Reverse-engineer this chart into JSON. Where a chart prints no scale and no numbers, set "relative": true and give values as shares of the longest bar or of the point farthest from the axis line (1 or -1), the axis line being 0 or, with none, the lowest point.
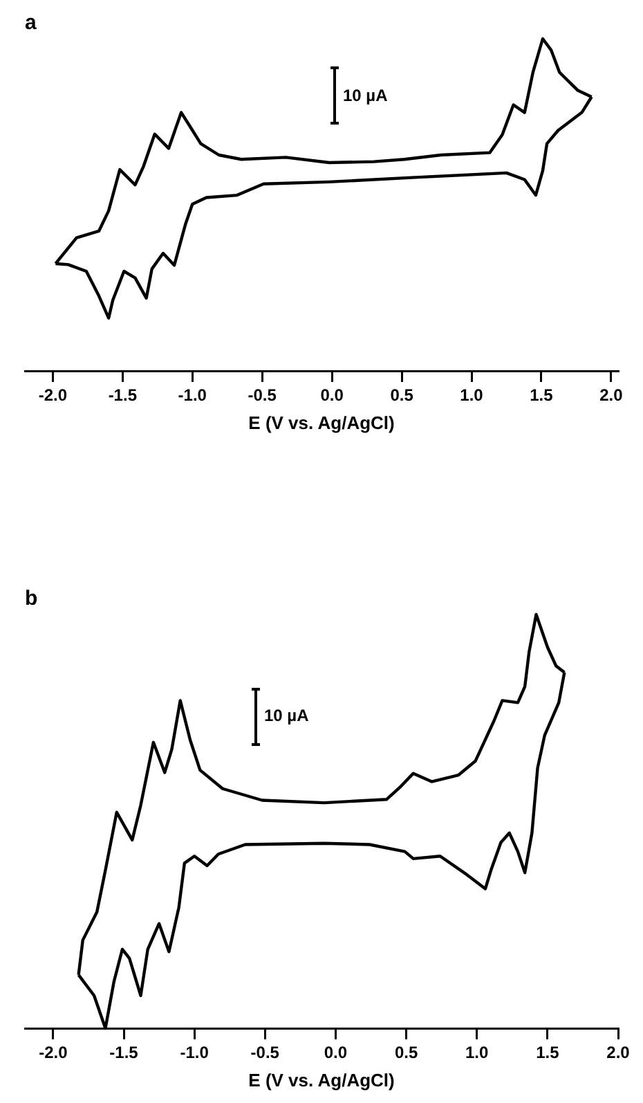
{
  "chart_data": [
    {
      "type": "line",
      "title": "a",
      "xlabel": "E (V vs. Ag/AgCl)",
      "relative": true,
      "xlim": [
        -2.2,
        2.05
      ],
      "xticks": [
        {
          "value": -2,
          "label": "-2.0"
        },
        {
          "value": -1.5,
          "label": "-1.5"
        },
        {
          "value": -1,
          "label": "-1.0"
        },
        {
          "value": -0.5,
          "label": "-0.5"
        },
        {
          "value": 0,
          "label": "0.0"
        },
        {
          "value": 0.5,
          "label": "0.5"
        },
        {
          "value": 1,
          "label": "1.0"
        },
        {
          "value": 1.5,
          "label": "1.5"
        },
        {
          "value": 2,
          "label": "2.0"
        }
      ],
      "marker": "none",
      "line_style": "solid",
      "legend": false,
      "grid": false,
      "annotations": [
        "10 µA"
      ],
      "series": [
        {
          "color": "#000000",
          "x": [
            -1.98,
            -1.83,
            -1.67,
            -1.6,
            -1.52,
            -1.41,
            -1.35,
            -1.27,
            -1.17,
            -1.08,
            -1.02,
            -0.94,
            -0.81,
            -0.65,
            -0.33,
            -0.02,
            0.3,
            0.52,
            0.78,
            1.13,
            1.22,
            1.3,
            1.38,
            1.44,
            1.51,
            1.57,
            1.63,
            1.76,
            1.86
          ],
          "values": [
            0.323,
            0.401,
            0.421,
            0.482,
            0.606,
            0.56,
            0.616,
            0.713,
            0.67,
            0.778,
            0.738,
            0.684,
            0.65,
            0.637,
            0.643,
            0.627,
            0.63,
            0.637,
            0.65,
            0.657,
            0.711,
            0.801,
            0.778,
            0.899,
            1,
            0.966,
            0.899,
            0.845,
            0.825
          ]
        },
        {
          "color": "#000000",
          "x": [
            1.86,
            1.79,
            1.62,
            1.54,
            1.51,
            1.46,
            1.38,
            1.25,
            0.62,
            -0.02,
            -0.49,
            -0.68,
            -0.9,
            -1.0,
            -1.05,
            -1.13,
            -1.21,
            -1.29,
            -1.33,
            -1.41,
            -1.49,
            -1.57,
            -1.6,
            -1.67,
            -1.76,
            -1.89,
            -1.98
          ],
          "values": [
            0.825,
            0.778,
            0.724,
            0.684,
            0.603,
            0.529,
            0.576,
            0.596,
            0.583,
            0.569,
            0.563,
            0.529,
            0.522,
            0.502,
            0.441,
            0.318,
            0.354,
            0.307,
            0.219,
            0.28,
            0.3,
            0.213,
            0.159,
            0.226,
            0.3,
            0.32,
            0.323
          ]
        }
      ]
    },
    {
      "type": "line",
      "title": "b",
      "xlabel": "E (V vs. Ag/AgCl)",
      "relative": true,
      "xlim": [
        -2.2,
        2.0
      ],
      "xticks": [
        {
          "value": -2,
          "label": "-2.0"
        },
        {
          "value": -1.5,
          "label": "-1.5"
        },
        {
          "value": -1,
          "label": "-1.0"
        },
        {
          "value": -0.5,
          "label": "-0.5"
        },
        {
          "value": 0,
          "label": "0.0"
        },
        {
          "value": 0.5,
          "label": "0.5"
        },
        {
          "value": 1,
          "label": "1.0"
        },
        {
          "value": 1.5,
          "label": "1.5"
        },
        {
          "value": 2,
          "label": "2.0"
        }
      ],
      "marker": "none",
      "line_style": "solid",
      "legend": false,
      "grid": false,
      "annotations": [
        "10 µA"
      ],
      "series": [
        {
          "color": "#000000",
          "x": [
            -1.82,
            -1.79,
            -1.69,
            -1.63,
            -1.55,
            -1.44,
            -1.38,
            -1.29,
            -1.21,
            -1.16,
            -1.1,
            -1.03,
            -0.96,
            -0.8,
            -0.52,
            -0.08,
            0.36,
            0.46,
            0.55,
            0.68,
            0.87,
            0.99,
            1.12,
            1.18,
            1.29,
            1.34,
            1.37,
            1.42,
            1.5,
            1.56,
            1.62
          ],
          "values": [
            0.129,
            0.213,
            0.281,
            0.382,
            0.522,
            0.455,
            0.539,
            0.691,
            0.618,
            0.674,
            0.792,
            0.697,
            0.624,
            0.579,
            0.551,
            0.545,
            0.553,
            0.584,
            0.616,
            0.596,
            0.612,
            0.646,
            0.742,
            0.792,
            0.787,
            0.826,
            0.91,
            1,
            0.921,
            0.876,
            0.86
          ]
        },
        {
          "color": "#000000",
          "x": [
            1.62,
            1.58,
            1.48,
            1.43,
            1.39,
            1.34,
            1.29,
            1.23,
            1.17,
            1.1,
            1.06,
            0.93,
            0.74,
            0.55,
            0.49,
            0.24,
            -0.08,
            -0.64,
            -0.83,
            -0.91,
            -1.0,
            -1.07,
            -1.11,
            -1.18,
            -1.25,
            -1.33,
            -1.38,
            -1.46,
            -1.51,
            -1.57,
            -1.63,
            -1.71,
            -1.82
          ],
          "values": [
            0.86,
            0.787,
            0.708,
            0.629,
            0.472,
            0.376,
            0.427,
            0.472,
            0.449,
            0.382,
            0.337,
            0.371,
            0.416,
            0.41,
            0.427,
            0.444,
            0.447,
            0.444,
            0.421,
            0.393,
            0.416,
            0.399,
            0.292,
            0.185,
            0.253,
            0.191,
            0.079,
            0.169,
            0.191,
            0.112,
            0,
            0.079,
            0.129
          ]
        }
      ]
    }
  ]
}
